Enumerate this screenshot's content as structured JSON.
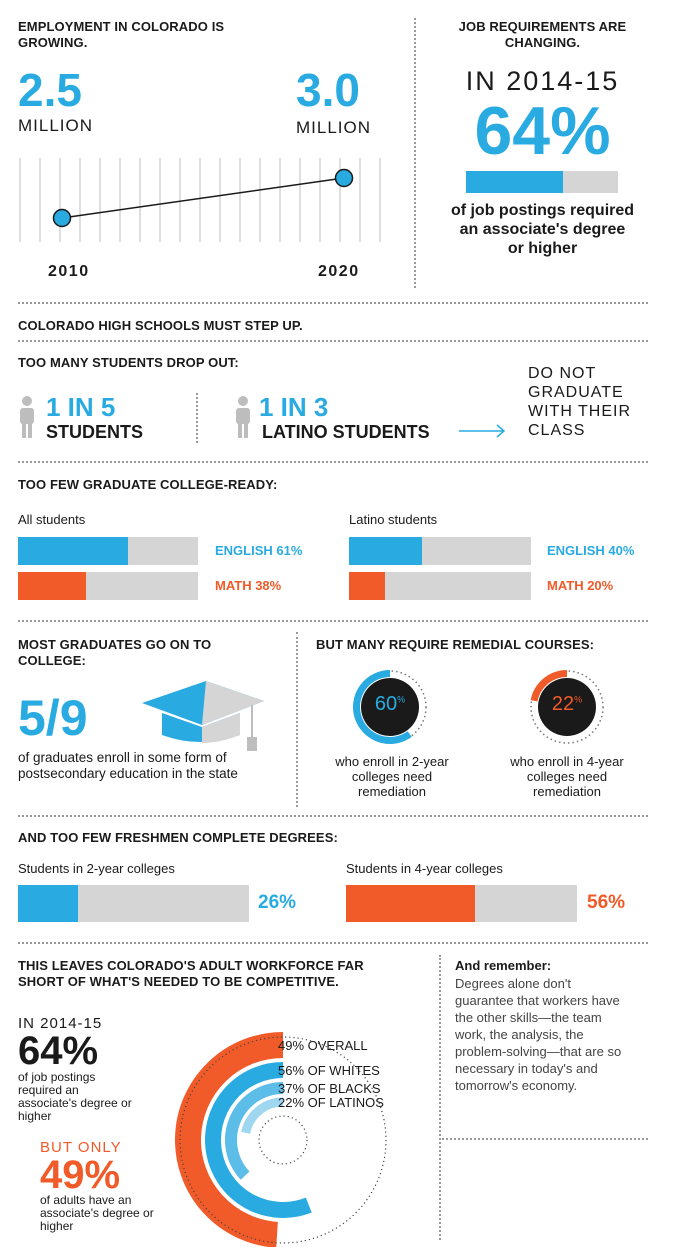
{
  "colors": {
    "blue": "#29abe2",
    "orange": "#f15a29",
    "gray": "#d5d5d5",
    "dark": "#1a1a1a"
  },
  "employment": {
    "title": "EMPLOYMENT IN COLORADO IS GROWING.",
    "start_value": "2.5",
    "start_unit": "MILLION",
    "end_value": "3.0",
    "end_unit": "MILLION",
    "start_year": "2010",
    "end_year": "2020"
  },
  "requirements": {
    "title": "JOB REQUIREMENTS ARE CHANGING.",
    "period": "IN 2014-15",
    "percent": "64%",
    "caption": "of job postings required an associate's degree or higher"
  },
  "highschool": {
    "title": "COLORADO HIGH SCHOOLS MUST STEP UP.",
    "dropout_title": "TOO MANY STUDENTS DROP OUT:",
    "stat1_ratio": "1 IN 5",
    "stat1_group": "STUDENTS",
    "stat2_ratio": "1 IN 3",
    "stat2_group": "LATINO STUDENTS",
    "outcome": "DO NOT GRADUATE WITH THEIR CLASS"
  },
  "college_ready": {
    "title": "TOO FEW GRADUATE COLLEGE-READY:",
    "all_label": "All students",
    "latino_label": "Latino students",
    "all_english": "ENGLISH 61%",
    "all_math": "MATH 38%",
    "lat_english": "ENGLISH 40%",
    "lat_math": "MATH 20%"
  },
  "enroll": {
    "title": "MOST GRADUATES GO ON TO COLLEGE:",
    "fraction": "5/9",
    "caption": "of graduates enroll in some form of postsecondary education in the state"
  },
  "remedial": {
    "title": "BUT MANY REQUIRE REMEDIAL COURSES:",
    "two_year_pct": "60",
    "two_year_caption": "who enroll in 2-year colleges need remediation",
    "four_year_pct": "22",
    "four_year_caption": "who enroll in 4-year colleges need remediation",
    "pct_sign": "%"
  },
  "degrees": {
    "title": "AND TOO FEW FRESHMEN COMPLETE DEGREES:",
    "two_year_label": "Students in 2-year colleges",
    "two_year_value": "26%",
    "four_year_label": "Students in 4-year colleges",
    "four_year_value": "56%"
  },
  "workforce": {
    "title": "THIS LEAVES COLORADO'S ADULT WORKFORCE FAR SHORT OF WHAT'S NEEDED TO BE COMPETITIVE.",
    "period": "IN 2014-15",
    "percent": "64%",
    "caption": "of job postings required an associate's degree or higher",
    "but_only": "BUT ONLY",
    "adult_percent": "49%",
    "adult_caption": "of adults have an associate's degree or higher",
    "remember_title": "And remember:",
    "remember_text": "Degrees alone don't guarantee that workers have the other skills—the team work, the analysis, the problem-solving—that are so necessary in today's and tomorrow's economy."
  },
  "chart_data": [
    {
      "type": "line",
      "x": [
        2010,
        2020
      ],
      "values": [
        2.5,
        3.0
      ],
      "ylabel": "MILLION"
    },
    {
      "type": "bar",
      "categories": [
        "job postings requiring associate's degree or higher"
      ],
      "values": [
        64
      ]
    },
    {
      "type": "bar",
      "series": [
        {
          "name": "All students",
          "categories": [
            "ENGLISH",
            "MATH"
          ],
          "values": [
            61,
            38
          ]
        },
        {
          "name": "Latino students",
          "categories": [
            "ENGLISH",
            "MATH"
          ],
          "values": [
            40,
            20
          ]
        }
      ]
    },
    {
      "type": "pie",
      "categories": [
        "2-year colleges",
        "4-year colleges"
      ],
      "values": [
        60,
        22
      ]
    },
    {
      "type": "bar",
      "categories": [
        "Students in 2-year colleges",
        "Students in 4-year colleges"
      ],
      "values": [
        26,
        56
      ]
    },
    {
      "type": "bar",
      "categories": [
        "OVERALL",
        "OF WHITES",
        "OF BLACKS",
        "OF LATINOS"
      ],
      "values": [
        49,
        56,
        37,
        22
      ],
      "labels": [
        "49% OVERALL",
        "56% OF WHITES",
        "37% OF BLACKS",
        "22% OF LATINOS"
      ]
    }
  ]
}
